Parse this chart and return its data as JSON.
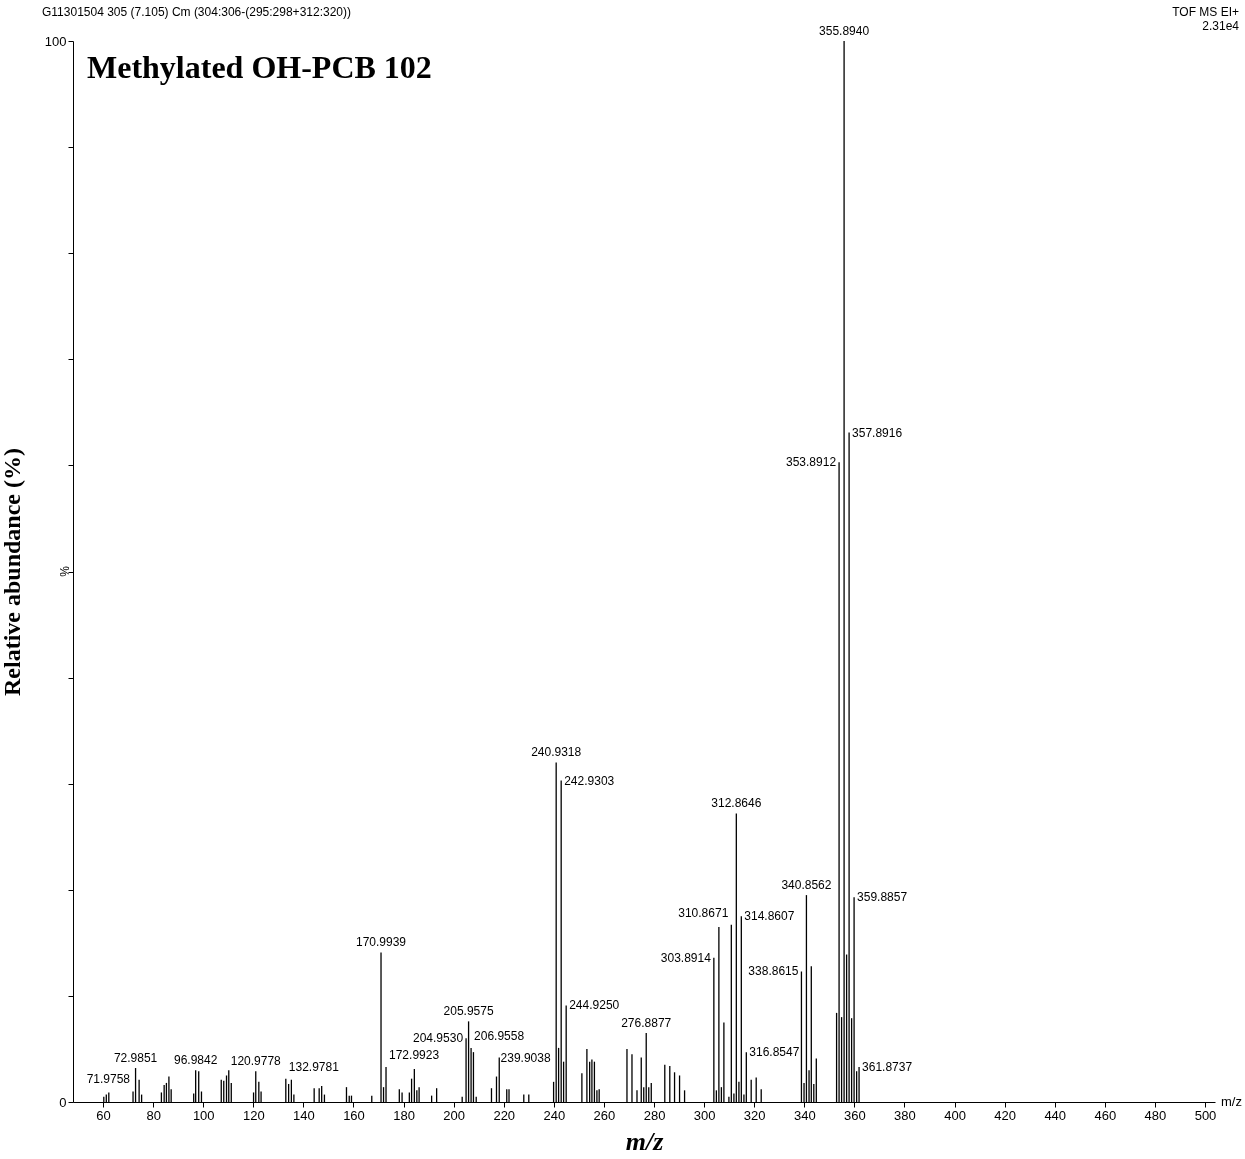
{
  "chart_data": {
    "type": "bar",
    "title": "Methylated OH-PCB 102",
    "xlabel": "m/z",
    "ylabel": "Relative abundance (%)",
    "annotations": [
      "G11301504 305 (7.105) Cm (304:306-(295:298+312:320))",
      "TOF MS EI+",
      "2.31e4",
      "%",
      "m/z",
      {
        "text": "71.9758",
        "x": 71.9758,
        "y": 1.0
      },
      {
        "text": "72.9851",
        "x": 72.9851,
        "y": 3.2
      },
      {
        "text": "96.9842",
        "x": 96.9842,
        "y": 3.0
      },
      {
        "text": "120.9778",
        "x": 120.9778,
        "y": 2.9
      },
      {
        "text": "132.9781",
        "x": 132.9781,
        "y": 2.2
      },
      {
        "text": "170.9939",
        "x": 170.9939,
        "y": 14.1
      },
      {
        "text": "172.9923",
        "x": 172.9923,
        "y": 3.3
      },
      {
        "text": "204.9530",
        "x": 204.953,
        "y": 6.0
      },
      {
        "text": "205.9575",
        "x": 205.9575,
        "y": 7.6
      },
      {
        "text": "206.9558",
        "x": 206.9558,
        "y": 5.1
      },
      {
        "text": "239.9038",
        "x": 239.9038,
        "y": 1.9
      },
      {
        "text": "240.9318",
        "x": 240.9318,
        "y": 32.0
      },
      {
        "text": "242.9303",
        "x": 242.9303,
        "y": 30.3
      },
      {
        "text": "244.9250",
        "x": 244.925,
        "y": 9.1
      },
      {
        "text": "276.8877",
        "x": 276.8877,
        "y": 6.5
      },
      {
        "text": "303.8914",
        "x": 303.8914,
        "y": 13.6
      },
      {
        "text": "310.8671",
        "x": 310.8671,
        "y": 16.7
      },
      {
        "text": "312.8646",
        "x": 312.8646,
        "y": 27.2
      },
      {
        "text": "314.8607",
        "x": 314.8607,
        "y": 17.5
      },
      {
        "text": "316.8547",
        "x": 316.8547,
        "y": 4.7
      },
      {
        "text": "338.8615",
        "x": 338.8615,
        "y": 12.3
      },
      {
        "text": "340.8562",
        "x": 340.8562,
        "y": 19.5
      },
      {
        "text": "353.8912",
        "x": 353.8912,
        "y": 60.3
      },
      {
        "text": "355.8940",
        "x": 355.894,
        "y": 100
      },
      {
        "text": "357.8916",
        "x": 357.8916,
        "y": 63.1
      },
      {
        "text": "359.8857",
        "x": 359.8857,
        "y": 19.3
      },
      {
        "text": "361.8737",
        "x": 361.8737,
        "y": 3.3
      }
    ],
    "color": "#000000",
    "grid": false,
    "xlim": [
      50,
      502
    ],
    "ylim": [
      0,
      100
    ],
    "xticks": [
      60,
      80,
      100,
      120,
      140,
      160,
      180,
      200,
      220,
      240,
      260,
      280,
      300,
      320,
      340,
      360,
      380,
      400,
      420,
      440,
      460,
      480,
      500
    ],
    "yticks": [
      0,
      {
        "value": 10,
        "label": null
      },
      {
        "value": 20,
        "label": null
      },
      {
        "value": 30,
        "label": null
      },
      {
        "value": 40,
        "label": null
      },
      {
        "value": 50,
        "label": null
      },
      {
        "value": 60,
        "label": null
      },
      {
        "value": 70,
        "label": null
      },
      {
        "value": 80,
        "label": null
      },
      {
        "value": 90,
        "label": null
      },
      100
    ],
    "x": [
      60.3,
      61.3,
      62.3,
      71.9758,
      72.9851,
      74.4,
      75.4,
      83.3,
      84.4,
      85.3,
      86.3,
      87.2,
      96.2,
      96.9842,
      98.2,
      99.3,
      107.2,
      108.2,
      109.3,
      110.2,
      111.2,
      120.1,
      120.9778,
      122.2,
      123.1,
      132.9781,
      134.1,
      135.2,
      136.2,
      144.3,
      146.3,
      147.3,
      148.4,
      157.2,
      158.3,
      159.2,
      167.3,
      170.9939,
      172.0,
      172.9923,
      178.3,
      179.4,
      182.3,
      183.2,
      184.3,
      185.3,
      186.2,
      191.2,
      193.2,
      203.4,
      204.953,
      205.9575,
      206.9558,
      207.9,
      209.0,
      215.1,
      217.1,
      218.2,
      221.2,
      222.1,
      228.0,
      230.0,
      239.9038,
      240.9318,
      241.9,
      242.9303,
      243.9,
      244.925,
      251.2,
      253.2,
      254.3,
      255.2,
      256.2,
      257.2,
      258.1,
      269.2,
      271.2,
      273.2,
      274.9,
      275.9,
      276.8877,
      277.9,
      278.9,
      284.3,
      286.3,
      288.2,
      290.2,
      292.2,
      303.8914,
      304.9,
      305.9,
      306.9,
      307.9,
      309.9,
      310.8671,
      311.9,
      312.8646,
      313.9,
      314.8607,
      315.9,
      316.8547,
      318.8,
      320.8,
      322.8,
      338.8615,
      339.9,
      340.8562,
      341.9,
      342.8,
      343.8,
      344.8,
      352.9,
      353.8912,
      354.9,
      355.894,
      356.9,
      357.8916,
      358.9,
      359.8857,
      360.9,
      361.8737
    ],
    "values": [
      0.5,
      0.7,
      0.9,
      1.0,
      3.2,
      2.1,
      0.7,
      0.9,
      1.6,
      1.8,
      2.4,
      1.2,
      0.8,
      3.0,
      2.9,
      1.0,
      2.1,
      2.0,
      2.5,
      3.0,
      1.8,
      0.9,
      2.9,
      1.9,
      1.0,
      2.2,
      1.7,
      2.1,
      0.7,
      1.3,
      1.3,
      1.5,
      0.7,
      1.4,
      0.6,
      0.6,
      0.6,
      14.1,
      1.4,
      3.3,
      1.2,
      0.9,
      0.9,
      2.2,
      3.1,
      1.1,
      1.4,
      0.6,
      1.3,
      0.5,
      6.0,
      7.6,
      5.1,
      4.7,
      0.5,
      1.3,
      2.4,
      4.2,
      1.2,
      1.2,
      0.7,
      0.7,
      1.9,
      32.0,
      5.1,
      30.3,
      3.8,
      9.1,
      2.7,
      5.0,
      3.8,
      4.0,
      3.8,
      1.1,
      1.2,
      5.0,
      4.5,
      1.1,
      4.2,
      1.4,
      6.5,
      1.4,
      1.8,
      3.5,
      3.4,
      2.8,
      2.5,
      1.1,
      13.6,
      1.1,
      16.5,
      1.4,
      7.5,
      0.5,
      16.7,
      0.8,
      27.2,
      1.9,
      17.5,
      0.7,
      4.7,
      2.1,
      2.3,
      1.2,
      12.3,
      1.8,
      19.5,
      3.0,
      12.8,
      1.7,
      4.1,
      8.4,
      60.3,
      8.0,
      100,
      13.9,
      63.1,
      7.9,
      19.3,
      2.9,
      3.3
    ]
  }
}
